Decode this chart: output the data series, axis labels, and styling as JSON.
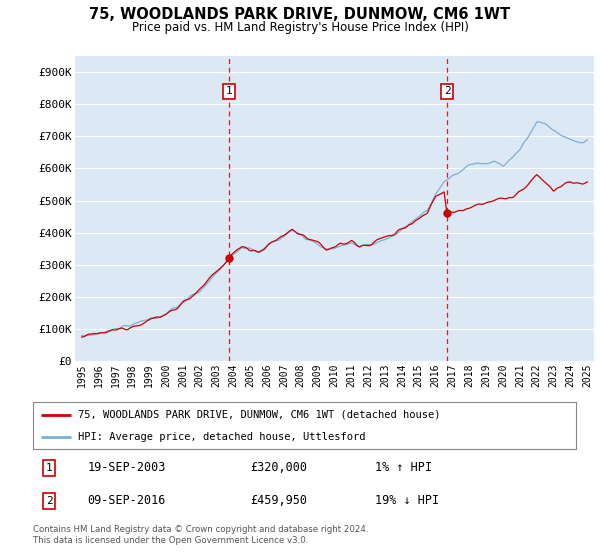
{
  "title": "75, WOODLANDS PARK DRIVE, DUNMOW, CM6 1WT",
  "subtitle": "Price paid vs. HM Land Registry's House Price Index (HPI)",
  "ylim": [
    0,
    950000
  ],
  "yticks": [
    0,
    100000,
    200000,
    300000,
    400000,
    500000,
    600000,
    700000,
    800000,
    900000
  ],
  "ytick_labels": [
    "£0",
    "£100K",
    "£200K",
    "£300K",
    "£400K",
    "£500K",
    "£600K",
    "£700K",
    "£800K",
    "£900K"
  ],
  "sale1": {
    "date_num": 2003.72,
    "price": 320000,
    "label": "1",
    "date_str": "19-SEP-2003",
    "price_str": "£320,000",
    "hpi_str": "1% ↑ HPI"
  },
  "sale2": {
    "date_num": 2016.69,
    "price": 459950,
    "label": "2",
    "date_str": "09-SEP-2016",
    "price_str": "£459,950",
    "hpi_str": "19% ↓ HPI"
  },
  "line_color_house": "#cc0000",
  "line_color_hpi": "#7bafd4",
  "vline_color": "#cc0000",
  "legend_label_house": "75, WOODLANDS PARK DRIVE, DUNMOW, CM6 1WT (detached house)",
  "legend_label_hpi": "HPI: Average price, detached house, Uttlesford",
  "footer": "Contains HM Land Registry data © Crown copyright and database right 2024.\nThis data is licensed under the Open Government Licence v3.0.",
  "background_color": "#ffffff",
  "plot_bg_color": "#dce9f5",
  "grid_color": "#c8d8e8"
}
